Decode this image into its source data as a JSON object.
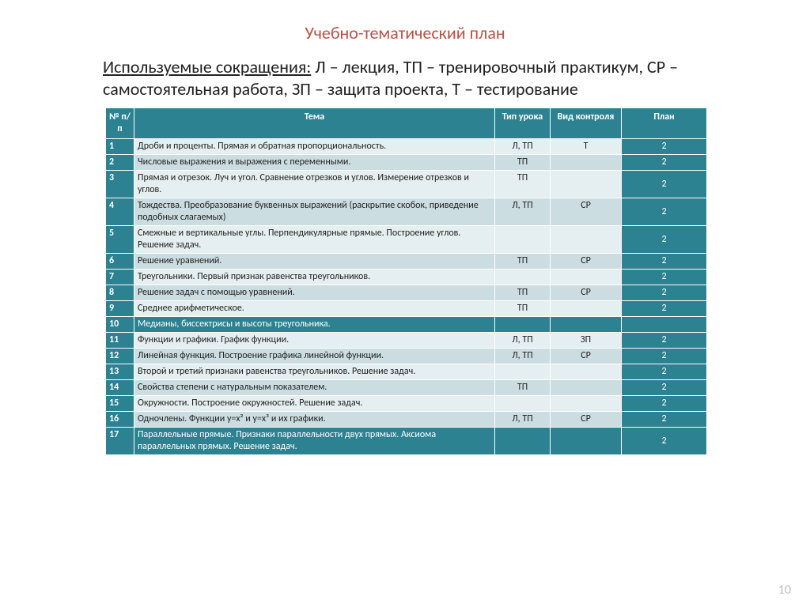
{
  "title": "Учебно-тематический план",
  "legend_prefix": "Используемые сокращения:",
  "legend_rest": " Л – лекция, ТП – тренировочный практикум, СР – самостоятельная работа, ЗП – защита проекта, Т – тестирование",
  "headers": {
    "num": "№ п/п",
    "topic": "Тема",
    "type": "Тип урока",
    "ctrl": "Вид контроля",
    "plan": "План"
  },
  "rows": [
    {
      "n": "1",
      "topic": "Дроби и проценты. Прямая и обратная пропорциональность.",
      "type": "Л, ТП",
      "ctrl": "Т",
      "plan": "2",
      "band": "light"
    },
    {
      "n": "2",
      "topic": "Числовые выражения и выражения с переменными.",
      "type": "ТП",
      "ctrl": "",
      "plan": "2",
      "band": "dark"
    },
    {
      "n": "3",
      "topic": "Прямая и отрезок. Луч и угол. Сравнение отрезков и углов.  Измерение отрезков и углов.",
      "type": "ТП",
      "ctrl": "",
      "plan": "2",
      "band": "light"
    },
    {
      "n": "4",
      "topic": "Тождества. Преобразование буквенных выражений (раскрытие скобок, приведение подобных слагаемых)",
      "type": "Л, ТП",
      "ctrl": "СР",
      "plan": "2",
      "band": "dark"
    },
    {
      "n": "5",
      "topic": "Смежные и вертикальные углы. Перпендикулярные прямые. Построение углов. Решение задач.",
      "type": "",
      "ctrl": "",
      "plan": "2",
      "band": "light"
    },
    {
      "n": "6",
      "topic": "Решение уравнений.",
      "type": "ТП",
      "ctrl": "СР",
      "plan": "2",
      "band": "dark"
    },
    {
      "n": "7",
      "topic": "Треугольники. Первый признак равенства треугольников.",
      "type": "",
      "ctrl": "",
      "plan": "2",
      "band": "light"
    },
    {
      "n": "8",
      "topic": "Решение задач с помощью уравнений.",
      "type": "ТП",
      "ctrl": "СР",
      "plan": "2",
      "band": "dark"
    },
    {
      "n": "9",
      "topic": "Среднее арифметическое.",
      "type": "ТП",
      "ctrl": "",
      "plan": "2",
      "band": "light"
    },
    {
      "n": "10",
      "topic": "Медианы, биссектрисы и высоты треугольника.",
      "type": "",
      "ctrl": "",
      "plan": "",
      "band": "teal"
    },
    {
      "n": "11",
      "topic": "Функции и графики. График функции.",
      "type": "Л, ТП",
      "ctrl": "ЗП",
      "plan": "2",
      "band": "light"
    },
    {
      "n": "12",
      "topic": "Линейная функция. Построение графика линейной функции.",
      "type": "Л, ТП",
      "ctrl": "СР",
      "plan": "2",
      "band": "dark"
    },
    {
      "n": "13",
      "topic": "Второй и третий признаки равенства треугольников. Решение задач.",
      "type": "",
      "ctrl": "",
      "plan": "2",
      "band": "light"
    },
    {
      "n": "14",
      "topic": "Свойства степени с натуральным показателем.",
      "type": "ТП",
      "ctrl": "",
      "plan": "2",
      "band": "dark"
    },
    {
      "n": "15",
      "topic": "Окружности. Построение окружностей. Решение задач.",
      "type": "",
      "ctrl": "",
      "plan": "2",
      "band": "light"
    },
    {
      "n": "16",
      "topic": "Одночлены. Функции y=x² и y=x³ и их графики.",
      "type": "Л, ТП",
      "ctrl": "СР",
      "plan": "2",
      "band": "dark"
    },
    {
      "n": "17",
      "topic": "Параллельные прямые. Признаки параллельности двух прямых. Аксиома параллельных прямых. Решение задач.",
      "type": "",
      "ctrl": "",
      "plan": "2",
      "band": "teal"
    }
  ],
  "page_number": "10",
  "style": {
    "header_bg": "#2c8290",
    "light_band": "#e5eef0",
    "dark_band": "#cbdde1",
    "title_color": "#c05046",
    "fontsize_title": 22,
    "fontsize_legend": 22,
    "fontsize_table": 12
  }
}
